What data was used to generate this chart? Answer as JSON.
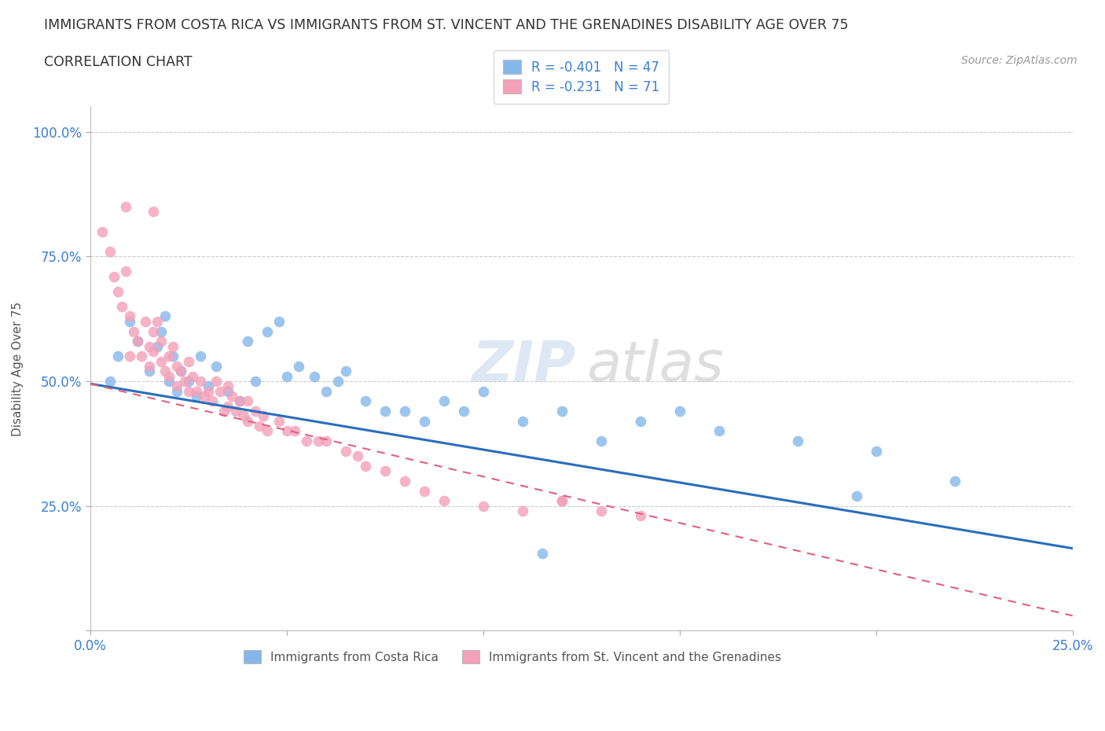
{
  "title_line1": "IMMIGRANTS FROM COSTA RICA VS IMMIGRANTS FROM ST. VINCENT AND THE GRENADINES DISABILITY AGE OVER 75",
  "title_line2": "CORRELATION CHART",
  "source_text": "Source: ZipAtlas.com",
  "ylabel": "Disability Age Over 75",
  "xlim": [
    0.0,
    0.25
  ],
  "ylim": [
    0.0,
    1.05
  ],
  "xtick_vals": [
    0.0,
    0.05,
    0.1,
    0.15,
    0.2,
    0.25
  ],
  "xtick_labels": [
    "0.0%",
    "",
    "",
    "",
    "",
    "25.0%"
  ],
  "ytick_vals": [
    0.0,
    0.25,
    0.5,
    0.75,
    1.0
  ],
  "ytick_labels": [
    "",
    "25.0%",
    "50.0%",
    "75.0%",
    "100.0%"
  ],
  "blue_color": "#85b8ea",
  "pink_color": "#f4a0b8",
  "blue_line_color": "#2a6ebb",
  "pink_line_color": "#e06080",
  "legend_r1": "-0.401",
  "legend_n1": "47",
  "legend_r2": "-0.231",
  "legend_n2": "71",
  "watermark_zip": "ZIP",
  "watermark_atlas": "atlas",
  "blue_trend_x0": 0.0,
  "blue_trend_y0": 0.495,
  "blue_trend_x1": 0.25,
  "blue_trend_y1": 0.165,
  "pink_trend_x0": 0.0,
  "pink_trend_y0": 0.495,
  "pink_trend_x1": 0.25,
  "pink_trend_y1": 0.03,
  "blue_x": [
    0.005,
    0.007,
    0.01,
    0.012,
    0.015,
    0.017,
    0.018,
    0.019,
    0.02,
    0.021,
    0.022,
    0.023,
    0.025,
    0.027,
    0.028,
    0.03,
    0.032,
    0.035,
    0.038,
    0.04,
    0.042,
    0.045,
    0.048,
    0.05,
    0.053,
    0.057,
    0.06,
    0.063,
    0.065,
    0.07,
    0.075,
    0.08,
    0.085,
    0.09,
    0.095,
    0.1,
    0.11,
    0.12,
    0.13,
    0.14,
    0.15,
    0.16,
    0.18,
    0.2,
    0.22,
    0.195,
    0.115
  ],
  "blue_y": [
    0.5,
    0.55,
    0.62,
    0.58,
    0.52,
    0.57,
    0.6,
    0.63,
    0.5,
    0.55,
    0.48,
    0.52,
    0.5,
    0.47,
    0.55,
    0.49,
    0.53,
    0.48,
    0.46,
    0.58,
    0.5,
    0.6,
    0.62,
    0.51,
    0.53,
    0.51,
    0.48,
    0.5,
    0.52,
    0.46,
    0.44,
    0.44,
    0.42,
    0.46,
    0.44,
    0.48,
    0.42,
    0.44,
    0.38,
    0.42,
    0.44,
    0.4,
    0.38,
    0.36,
    0.3,
    0.27,
    0.155
  ],
  "pink_x": [
    0.003,
    0.005,
    0.006,
    0.007,
    0.008,
    0.009,
    0.01,
    0.01,
    0.011,
    0.012,
    0.013,
    0.014,
    0.015,
    0.015,
    0.016,
    0.016,
    0.017,
    0.018,
    0.018,
    0.019,
    0.02,
    0.02,
    0.021,
    0.022,
    0.022,
    0.023,
    0.024,
    0.025,
    0.025,
    0.026,
    0.027,
    0.028,
    0.029,
    0.03,
    0.031,
    0.032,
    0.033,
    0.034,
    0.035,
    0.035,
    0.036,
    0.037,
    0.038,
    0.039,
    0.04,
    0.04,
    0.042,
    0.043,
    0.044,
    0.045,
    0.048,
    0.05,
    0.052,
    0.055,
    0.058,
    0.06,
    0.065,
    0.068,
    0.07,
    0.075,
    0.08,
    0.085,
    0.09,
    0.1,
    0.11,
    0.12,
    0.13,
    0.14,
    0.016,
    0.009,
    0.12
  ],
  "pink_y": [
    0.8,
    0.76,
    0.71,
    0.68,
    0.65,
    0.72,
    0.63,
    0.55,
    0.6,
    0.58,
    0.55,
    0.62,
    0.57,
    0.53,
    0.6,
    0.56,
    0.62,
    0.58,
    0.54,
    0.52,
    0.55,
    0.51,
    0.57,
    0.53,
    0.49,
    0.52,
    0.5,
    0.54,
    0.48,
    0.51,
    0.48,
    0.5,
    0.47,
    0.48,
    0.46,
    0.5,
    0.48,
    0.44,
    0.49,
    0.45,
    0.47,
    0.44,
    0.46,
    0.43,
    0.46,
    0.42,
    0.44,
    0.41,
    0.43,
    0.4,
    0.42,
    0.4,
    0.4,
    0.38,
    0.38,
    0.38,
    0.36,
    0.35,
    0.33,
    0.32,
    0.3,
    0.28,
    0.26,
    0.25,
    0.24,
    0.26,
    0.24,
    0.23,
    0.84,
    0.85,
    0.26
  ]
}
